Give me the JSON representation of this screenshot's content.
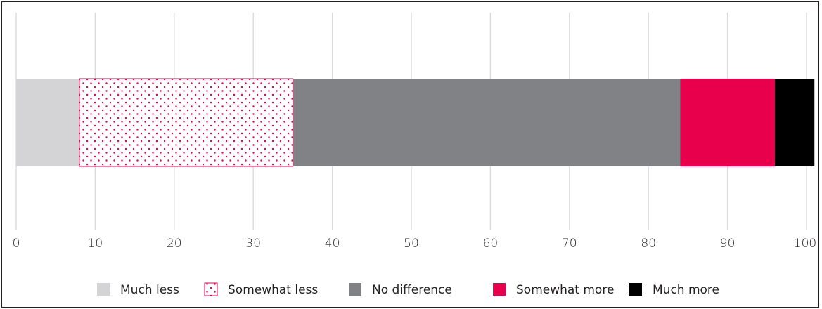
{
  "chart_data": {
    "type": "bar",
    "orientation": "horizontal",
    "stacked": true,
    "categories": [
      ""
    ],
    "series": [
      {
        "name": "Much less",
        "values": [
          8
        ],
        "color": "#d4d4d6",
        "pattern": "solid"
      },
      {
        "name": "Somewhat less",
        "values": [
          27
        ],
        "color": "#e8004c",
        "pattern": "dotted"
      },
      {
        "name": "No difference",
        "values": [
          49
        ],
        "color": "#818285",
        "pattern": "solid"
      },
      {
        "name": "Somewhat more",
        "values": [
          12
        ],
        "color": "#e8004c",
        "pattern": "solid"
      },
      {
        "name": "Much more",
        "values": [
          5
        ],
        "color": "#000000",
        "pattern": "solid"
      }
    ],
    "xlim": [
      0,
      100
    ],
    "xticks": [
      "0",
      "10",
      "20",
      "30",
      "40",
      "50",
      "60",
      "70",
      "80",
      "90",
      "100"
    ],
    "grid": true,
    "legend_position": "bottom"
  }
}
